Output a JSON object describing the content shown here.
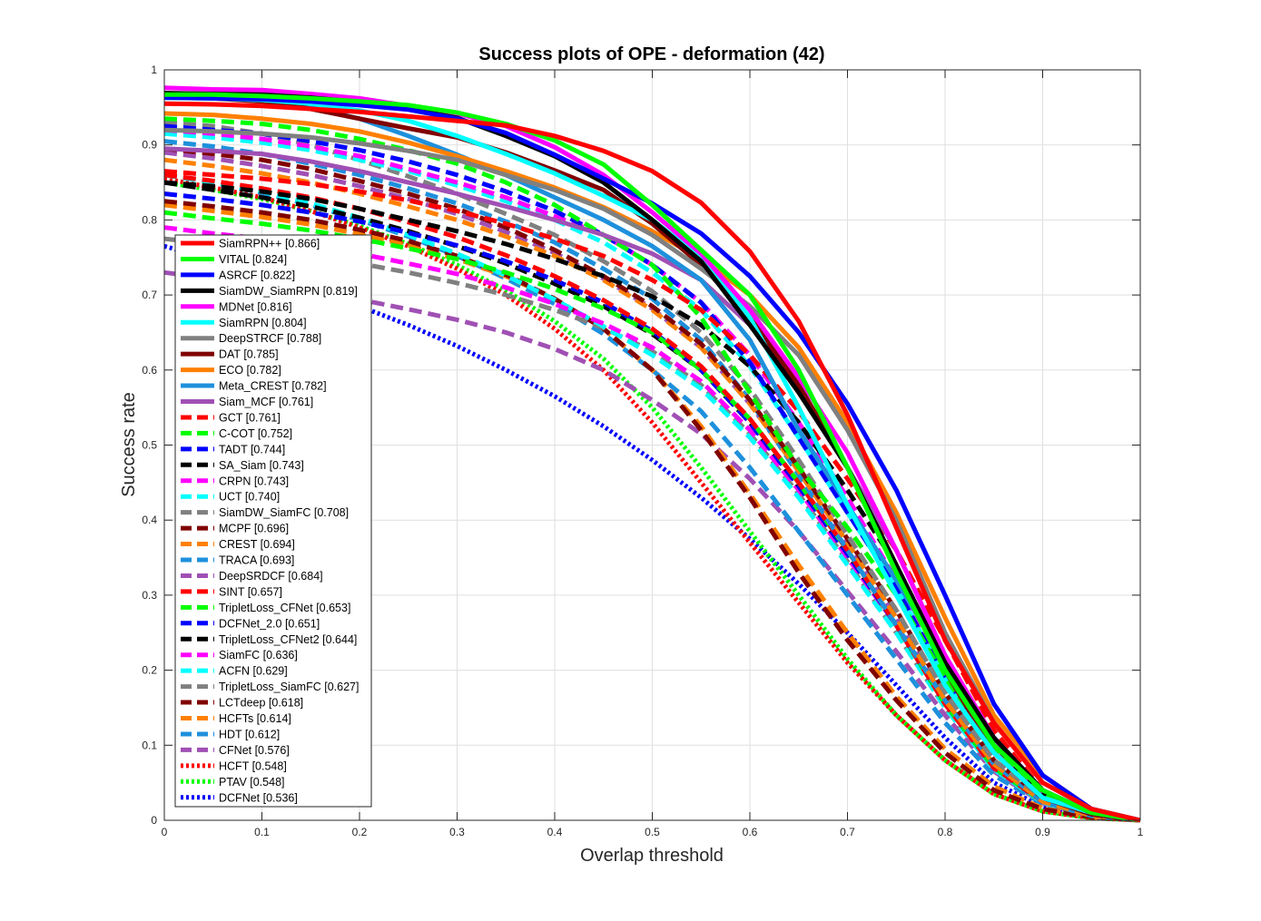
{
  "chart_data": {
    "type": "line",
    "title": "Success plots of OPE - deformation (42)",
    "xlabel": "Overlap threshold",
    "ylabel": "Success rate",
    "xlim": [
      0,
      1
    ],
    "ylim": [
      0,
      1
    ],
    "grid": true,
    "legend_location": "bottom-left",
    "x": [
      0,
      0.05,
      0.1,
      0.15,
      0.2,
      0.25,
      0.3,
      0.35,
      0.4,
      0.45,
      0.5,
      0.55,
      0.6,
      0.65,
      0.7,
      0.75,
      0.8,
      0.85,
      0.9,
      0.95,
      1.0
    ],
    "xticks": [
      "0",
      "0.1",
      "0.2",
      "0.3",
      "0.4",
      "0.5",
      "0.6",
      "0.7",
      "0.8",
      "0.9",
      "1"
    ],
    "yticks": [
      "0",
      "0.1",
      "0.2",
      "0.3",
      "0.4",
      "0.5",
      "0.6",
      "0.7",
      "0.8",
      "0.9",
      "1"
    ],
    "series": [
      {
        "name": "SiamRPN++ [0.866]",
        "color": "#ff0000",
        "style": "solid",
        "values": [
          0.955,
          0.954,
          0.952,
          0.948,
          0.944,
          0.938,
          0.932,
          0.926,
          0.912,
          0.892,
          0.865,
          0.823,
          0.758,
          0.665,
          0.54,
          0.39,
          0.24,
          0.13,
          0.05,
          0.015,
          0.0
        ]
      },
      {
        "name": "VITAL [0.824]",
        "color": "#00ff00",
        "style": "solid",
        "values": [
          0.967,
          0.967,
          0.965,
          0.962,
          0.958,
          0.953,
          0.943,
          0.928,
          0.906,
          0.874,
          0.82,
          0.76,
          0.7,
          0.6,
          0.47,
          0.33,
          0.2,
          0.1,
          0.04,
          0.01,
          0.0
        ]
      },
      {
        "name": "ASRCF [0.822]",
        "color": "#0000ff",
        "style": "solid",
        "values": [
          0.963,
          0.962,
          0.961,
          0.958,
          0.953,
          0.947,
          0.935,
          0.916,
          0.887,
          0.855,
          0.822,
          0.782,
          0.725,
          0.65,
          0.555,
          0.44,
          0.3,
          0.155,
          0.06,
          0.015,
          0.0
        ]
      },
      {
        "name": "SiamDW_SiamRPN [0.819]",
        "color": "#000000",
        "style": "solid",
        "values": [
          0.969,
          0.968,
          0.967,
          0.963,
          0.957,
          0.948,
          0.936,
          0.912,
          0.885,
          0.85,
          0.8,
          0.745,
          0.66,
          0.57,
          0.47,
          0.34,
          0.21,
          0.11,
          0.04,
          0.01,
          0.0
        ]
      },
      {
        "name": "MDNet [0.816]",
        "color": "#ff00ff",
        "style": "solid",
        "values": [
          0.976,
          0.974,
          0.973,
          0.968,
          0.962,
          0.952,
          0.942,
          0.925,
          0.897,
          0.86,
          0.81,
          0.755,
          0.68,
          0.59,
          0.49,
          0.36,
          0.22,
          0.11,
          0.04,
          0.01,
          0.0
        ]
      },
      {
        "name": "SiamRPN [0.804]",
        "color": "#00ffff",
        "style": "solid",
        "values": [
          0.963,
          0.962,
          0.96,
          0.955,
          0.946,
          0.932,
          0.912,
          0.888,
          0.862,
          0.832,
          0.8,
          0.75,
          0.67,
          0.55,
          0.42,
          0.3,
          0.18,
          0.09,
          0.03,
          0.01,
          0.0
        ]
      },
      {
        "name": "DeepSTRCF [0.788]",
        "color": "#808080",
        "style": "solid",
        "values": [
          0.92,
          0.918,
          0.915,
          0.91,
          0.902,
          0.892,
          0.88,
          0.86,
          0.84,
          0.815,
          0.78,
          0.735,
          0.685,
          0.62,
          0.52,
          0.4,
          0.25,
          0.13,
          0.05,
          0.015,
          0.0
        ]
      },
      {
        "name": "DAT [0.785]",
        "color": "#800000",
        "style": "solid",
        "values": [
          0.965,
          0.962,
          0.958,
          0.948,
          0.935,
          0.922,
          0.91,
          0.89,
          0.866,
          0.84,
          0.795,
          0.74,
          0.67,
          0.58,
          0.47,
          0.34,
          0.2,
          0.09,
          0.03,
          0.008,
          0.0
        ]
      },
      {
        "name": "ECO [0.782]",
        "color": "#ff8000",
        "style": "solid",
        "values": [
          0.942,
          0.94,
          0.935,
          0.928,
          0.918,
          0.903,
          0.885,
          0.865,
          0.843,
          0.817,
          0.785,
          0.748,
          0.7,
          0.63,
          0.53,
          0.41,
          0.27,
          0.14,
          0.06,
          0.015,
          0.0
        ]
      },
      {
        "name": "Meta_CREST [0.782]",
        "color": "#1e90dc",
        "style": "solid",
        "values": [
          0.963,
          0.962,
          0.96,
          0.95,
          0.935,
          0.912,
          0.887,
          0.86,
          0.83,
          0.8,
          0.765,
          0.72,
          0.64,
          0.52,
          0.42,
          0.32,
          0.21,
          0.11,
          0.04,
          0.01,
          0.0
        ]
      },
      {
        "name": "Siam_MCF [0.761]",
        "color": "#a050b4",
        "style": "solid",
        "values": [
          0.895,
          0.892,
          0.888,
          0.878,
          0.865,
          0.85,
          0.835,
          0.818,
          0.8,
          0.78,
          0.755,
          0.72,
          0.66,
          0.58,
          0.47,
          0.36,
          0.22,
          0.11,
          0.04,
          0.01,
          0.0
        ]
      },
      {
        "name": "GCT [0.761]",
        "color": "#ff0000",
        "style": "dashed",
        "values": [
          0.865,
          0.86,
          0.855,
          0.848,
          0.838,
          0.826,
          0.812,
          0.795,
          0.775,
          0.752,
          0.72,
          0.68,
          0.62,
          0.545,
          0.455,
          0.36,
          0.24,
          0.12,
          0.04,
          0.01,
          0.0
        ]
      },
      {
        "name": "C-COT [0.752]",
        "color": "#00ff00",
        "style": "dashed",
        "values": [
          0.935,
          0.932,
          0.928,
          0.92,
          0.908,
          0.893,
          0.875,
          0.85,
          0.82,
          0.78,
          0.74,
          0.67,
          0.57,
          0.47,
          0.39,
          0.3,
          0.19,
          0.095,
          0.035,
          0.01,
          0.0
        ]
      },
      {
        "name": "TADT [0.744]",
        "color": "#0000ff",
        "style": "dashed",
        "values": [
          0.925,
          0.92,
          0.915,
          0.905,
          0.893,
          0.878,
          0.86,
          0.838,
          0.812,
          0.78,
          0.74,
          0.69,
          0.61,
          0.51,
          0.41,
          0.31,
          0.19,
          0.09,
          0.03,
          0.008,
          0.0
        ]
      },
      {
        "name": "SA_Siam [0.743]",
        "color": "#000000",
        "style": "dashed",
        "values": [
          0.85,
          0.845,
          0.838,
          0.828,
          0.815,
          0.8,
          0.785,
          0.768,
          0.748,
          0.725,
          0.698,
          0.66,
          0.605,
          0.53,
          0.44,
          0.34,
          0.21,
          0.1,
          0.035,
          0.008,
          0.0
        ]
      },
      {
        "name": "CRPN [0.743]",
        "color": "#ff00ff",
        "style": "dashed",
        "values": [
          0.92,
          0.915,
          0.908,
          0.898,
          0.885,
          0.868,
          0.85,
          0.83,
          0.805,
          0.78,
          0.74,
          0.69,
          0.62,
          0.53,
          0.43,
          0.32,
          0.2,
          0.1,
          0.035,
          0.008,
          0.0
        ]
      },
      {
        "name": "UCT [0.740]",
        "color": "#00ffff",
        "style": "dashed",
        "values": [
          0.915,
          0.91,
          0.903,
          0.893,
          0.88,
          0.865,
          0.846,
          0.825,
          0.8,
          0.77,
          0.73,
          0.68,
          0.605,
          0.51,
          0.41,
          0.31,
          0.19,
          0.09,
          0.03,
          0.008,
          0.0
        ]
      },
      {
        "name": "SiamDW_SiamFC [0.708]",
        "color": "#808080",
        "style": "dashed",
        "values": [
          0.93,
          0.925,
          0.915,
          0.9,
          0.88,
          0.858,
          0.835,
          0.808,
          0.78,
          0.745,
          0.705,
          0.65,
          0.575,
          0.48,
          0.38,
          0.28,
          0.17,
          0.08,
          0.03,
          0.008,
          0.0
        ]
      },
      {
        "name": "MCPF [0.696]",
        "color": "#800000",
        "style": "dashed",
        "values": [
          0.895,
          0.888,
          0.88,
          0.868,
          0.852,
          0.835,
          0.815,
          0.79,
          0.76,
          0.725,
          0.685,
          0.635,
          0.56,
          0.47,
          0.375,
          0.28,
          0.17,
          0.08,
          0.03,
          0.008,
          0.0
        ]
      },
      {
        "name": "CREST [0.694]",
        "color": "#ff8000",
        "style": "dashed",
        "values": [
          0.88,
          0.872,
          0.862,
          0.85,
          0.835,
          0.818,
          0.8,
          0.778,
          0.752,
          0.72,
          0.68,
          0.63,
          0.555,
          0.465,
          0.37,
          0.27,
          0.16,
          0.075,
          0.025,
          0.006,
          0.0
        ]
      },
      {
        "name": "TRACA [0.693]",
        "color": "#1e90dc",
        "style": "dashed",
        "values": [
          0.905,
          0.898,
          0.888,
          0.875,
          0.86,
          0.842,
          0.822,
          0.798,
          0.77,
          0.735,
          0.695,
          0.64,
          0.56,
          0.46,
          0.36,
          0.26,
          0.16,
          0.075,
          0.025,
          0.006,
          0.0
        ]
      },
      {
        "name": "DeepSRDCF [0.684]",
        "color": "#a050b4",
        "style": "dashed",
        "values": [
          0.89,
          0.882,
          0.872,
          0.86,
          0.845,
          0.828,
          0.808,
          0.784,
          0.756,
          0.722,
          0.682,
          0.63,
          0.555,
          0.465,
          0.37,
          0.27,
          0.16,
          0.075,
          0.025,
          0.006,
          0.0
        ]
      },
      {
        "name": "SINT [0.657]",
        "color": "#ff0000",
        "style": "dashed",
        "values": [
          0.86,
          0.852,
          0.842,
          0.83,
          0.815,
          0.797,
          0.777,
          0.753,
          0.725,
          0.693,
          0.655,
          0.605,
          0.535,
          0.45,
          0.36,
          0.26,
          0.155,
          0.07,
          0.025,
          0.006,
          0.0
        ]
      },
      {
        "name": "TripletLoss_CFNet [0.653]",
        "color": "#00ff00",
        "style": "dashed",
        "values": [
          0.81,
          0.802,
          0.795,
          0.786,
          0.775,
          0.762,
          0.748,
          0.73,
          0.708,
          0.682,
          0.65,
          0.6,
          0.535,
          0.45,
          0.36,
          0.26,
          0.155,
          0.07,
          0.025,
          0.006,
          0.0
        ]
      },
      {
        "name": "DCFNet_2.0 [0.651]",
        "color": "#0000ff",
        "style": "dashed",
        "values": [
          0.835,
          0.828,
          0.82,
          0.81,
          0.798,
          0.783,
          0.766,
          0.745,
          0.72,
          0.69,
          0.652,
          0.6,
          0.53,
          0.445,
          0.355,
          0.26,
          0.155,
          0.07,
          0.025,
          0.006,
          0.0
        ]
      },
      {
        "name": "TripletLoss_CFNet2 [0.644]",
        "color": "#000000",
        "style": "dashed",
        "values": [
          0.85,
          0.84,
          0.83,
          0.818,
          0.803,
          0.785,
          0.765,
          0.742,
          0.715,
          0.685,
          0.648,
          0.6,
          0.53,
          0.445,
          0.355,
          0.26,
          0.155,
          0.07,
          0.025,
          0.006,
          0.0
        ]
      },
      {
        "name": "SiamFC [0.636]",
        "color": "#ff00ff",
        "style": "dashed",
        "values": [
          0.79,
          0.782,
          0.775,
          0.766,
          0.755,
          0.742,
          0.728,
          0.71,
          0.688,
          0.662,
          0.63,
          0.585,
          0.52,
          0.44,
          0.35,
          0.26,
          0.155,
          0.07,
          0.025,
          0.006,
          0.0
        ]
      },
      {
        "name": "ACFN [0.629]",
        "color": "#00ffff",
        "style": "dashed",
        "values": [
          0.86,
          0.85,
          0.838,
          0.822,
          0.803,
          0.78,
          0.755,
          0.726,
          0.694,
          0.658,
          0.62,
          0.575,
          0.51,
          0.43,
          0.34,
          0.25,
          0.15,
          0.068,
          0.024,
          0.006,
          0.0
        ]
      },
      {
        "name": "TripletLoss_SiamFC [0.627]",
        "color": "#808080",
        "style": "dashed",
        "values": [
          0.775,
          0.768,
          0.76,
          0.752,
          0.742,
          0.73,
          0.716,
          0.7,
          0.68,
          0.656,
          0.625,
          0.58,
          0.515,
          0.435,
          0.345,
          0.25,
          0.15,
          0.068,
          0.024,
          0.006,
          0.0
        ]
      },
      {
        "name": "LCTdeep [0.618]",
        "color": "#800000",
        "style": "dashed",
        "values": [
          0.825,
          0.818,
          0.81,
          0.8,
          0.787,
          0.772,
          0.752,
          0.727,
          0.695,
          0.655,
          0.6,
          0.52,
          0.43,
          0.33,
          0.24,
          0.16,
          0.09,
          0.04,
          0.015,
          0.004,
          0.0
        ]
      },
      {
        "name": "HCFTs [0.614]",
        "color": "#ff8000",
        "style": "dashed",
        "values": [
          0.82,
          0.812,
          0.804,
          0.794,
          0.781,
          0.766,
          0.748,
          0.725,
          0.695,
          0.655,
          0.6,
          0.525,
          0.435,
          0.34,
          0.25,
          0.165,
          0.095,
          0.045,
          0.016,
          0.004,
          0.0
        ]
      },
      {
        "name": "HDT [0.612]",
        "color": "#1e90dc",
        "style": "dashed",
        "values": [
          0.86,
          0.85,
          0.836,
          0.82,
          0.8,
          0.778,
          0.752,
          0.722,
          0.688,
          0.648,
          0.6,
          0.545,
          0.47,
          0.385,
          0.3,
          0.215,
          0.13,
          0.06,
          0.022,
          0.005,
          0.0
        ]
      },
      {
        "name": "CFNet [0.576]",
        "color": "#a050b4",
        "style": "dashed",
        "values": [
          0.73,
          0.722,
          0.714,
          0.705,
          0.694,
          0.681,
          0.667,
          0.65,
          0.628,
          0.6,
          0.56,
          0.515,
          0.455,
          0.385,
          0.305,
          0.225,
          0.14,
          0.065,
          0.023,
          0.005,
          0.0
        ]
      },
      {
        "name": "HCFT [0.548]",
        "color": "#ff0000",
        "style": "dotted",
        "values": [
          0.855,
          0.843,
          0.83,
          0.812,
          0.79,
          0.765,
          0.735,
          0.7,
          0.655,
          0.6,
          0.53,
          0.45,
          0.37,
          0.29,
          0.21,
          0.14,
          0.08,
          0.035,
          0.012,
          0.003,
          0.0
        ]
      },
      {
        "name": "PTAV [0.548]",
        "color": "#00ff00",
        "style": "dotted",
        "values": [
          0.85,
          0.84,
          0.828,
          0.812,
          0.792,
          0.768,
          0.74,
          0.706,
          0.665,
          0.615,
          0.55,
          0.47,
          0.385,
          0.3,
          0.215,
          0.14,
          0.08,
          0.035,
          0.012,
          0.003,
          0.0
        ]
      },
      {
        "name": "DCFNet [0.536]",
        "color": "#0000ff",
        "style": "dotted",
        "values": [
          0.765,
          0.747,
          0.728,
          0.707,
          0.685,
          0.66,
          0.632,
          0.6,
          0.565,
          0.525,
          0.48,
          0.43,
          0.375,
          0.315,
          0.25,
          0.18,
          0.11,
          0.05,
          0.018,
          0.004,
          0.0
        ]
      }
    ]
  }
}
